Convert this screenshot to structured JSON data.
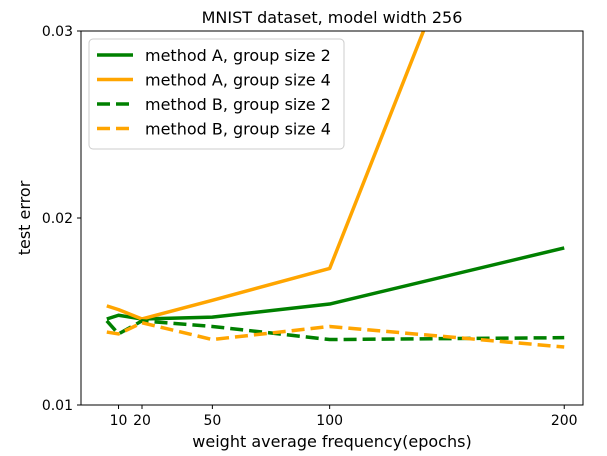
{
  "chart_data": {
    "type": "line",
    "title": "MNIST dataset, model width 256",
    "xlabel": "weight average frequency(epochs)",
    "ylabel": "test error",
    "xlim": [
      -6,
      208
    ],
    "ylim": [
      0.01,
      0.03
    ],
    "xticks": [
      10,
      20,
      50,
      100,
      200
    ],
    "xtick_labels": [
      "10",
      "20",
      "50",
      "100",
      "200"
    ],
    "yticks": [
      0.01,
      0.02,
      0.03
    ],
    "ytick_labels": [
      "0.01",
      "0.02",
      "0.03"
    ],
    "grid": false,
    "legend_position": "top-left",
    "series": [
      {
        "name": "method A, group size 2",
        "color": "#008000",
        "dash": "solid",
        "x": [
          5,
          10,
          20,
          50,
          100,
          200
        ],
        "y": [
          0.0146,
          0.0148,
          0.0146,
          0.0147,
          0.0154,
          0.0184
        ]
      },
      {
        "name": "method A, group size 4",
        "color": "#FFA500",
        "dash": "solid",
        "x": [
          5,
          10,
          20,
          50,
          100,
          140
        ],
        "y": [
          0.0153,
          0.0151,
          0.0146,
          0.0156,
          0.0173,
          0.03
        ]
      },
      {
        "name": "method B, group size 2",
        "color": "#008000",
        "dash": "dashed",
        "x": [
          5,
          10,
          20,
          50,
          100,
          200
        ],
        "y": [
          0.0145,
          0.0138,
          0.0145,
          0.0142,
          0.0135,
          0.0136
        ]
      },
      {
        "name": "method B, group size 4",
        "color": "#FFA500",
        "dash": "dashed",
        "x": [
          5,
          10,
          20,
          50,
          100,
          200
        ],
        "y": [
          0.0139,
          0.0138,
          0.0144,
          0.0135,
          0.0142,
          0.0131
        ]
      }
    ]
  }
}
